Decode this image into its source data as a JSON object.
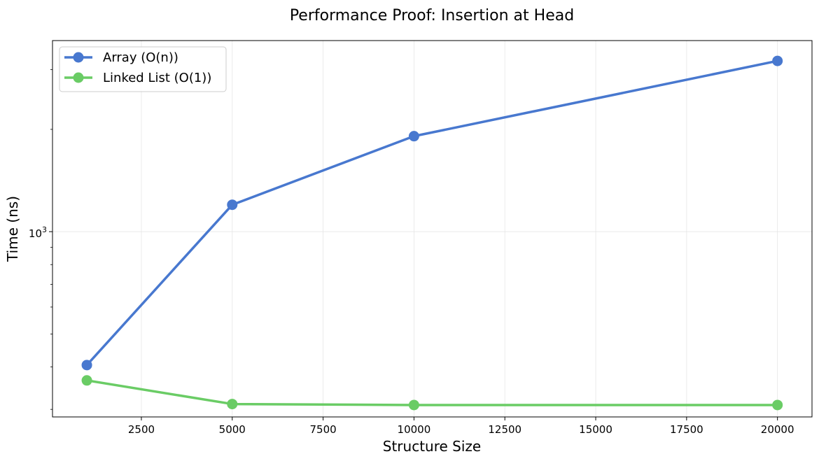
{
  "chart_data": {
    "type": "line",
    "title": "Performance Proof: Insertion at Head",
    "xlabel": "Structure Size",
    "ylabel": "Time (ns)",
    "x_scale": "linear",
    "y_scale": "log",
    "xlim": [
      55,
      20950
    ],
    "ylim": [
      285,
      3650
    ],
    "x_ticks": [
      2500,
      5000,
      7500,
      10000,
      12500,
      15000,
      17500,
      20000
    ],
    "y_ticks": [
      {
        "value": 1000,
        "label_base": "10",
        "label_exp": "3"
      }
    ],
    "grid": true,
    "legend_position": "top-left",
    "x": [
      1000,
      5000,
      10000,
      20000
    ],
    "series": [
      {
        "name": "Array (O(n))",
        "color": "#4878cf",
        "values": [
          405,
          1200,
          1910,
          3180
        ]
      },
      {
        "name": "Linked List (O(1))",
        "color": "#6acc65",
        "values": [
          365,
          311,
          309,
          309
        ]
      }
    ]
  }
}
